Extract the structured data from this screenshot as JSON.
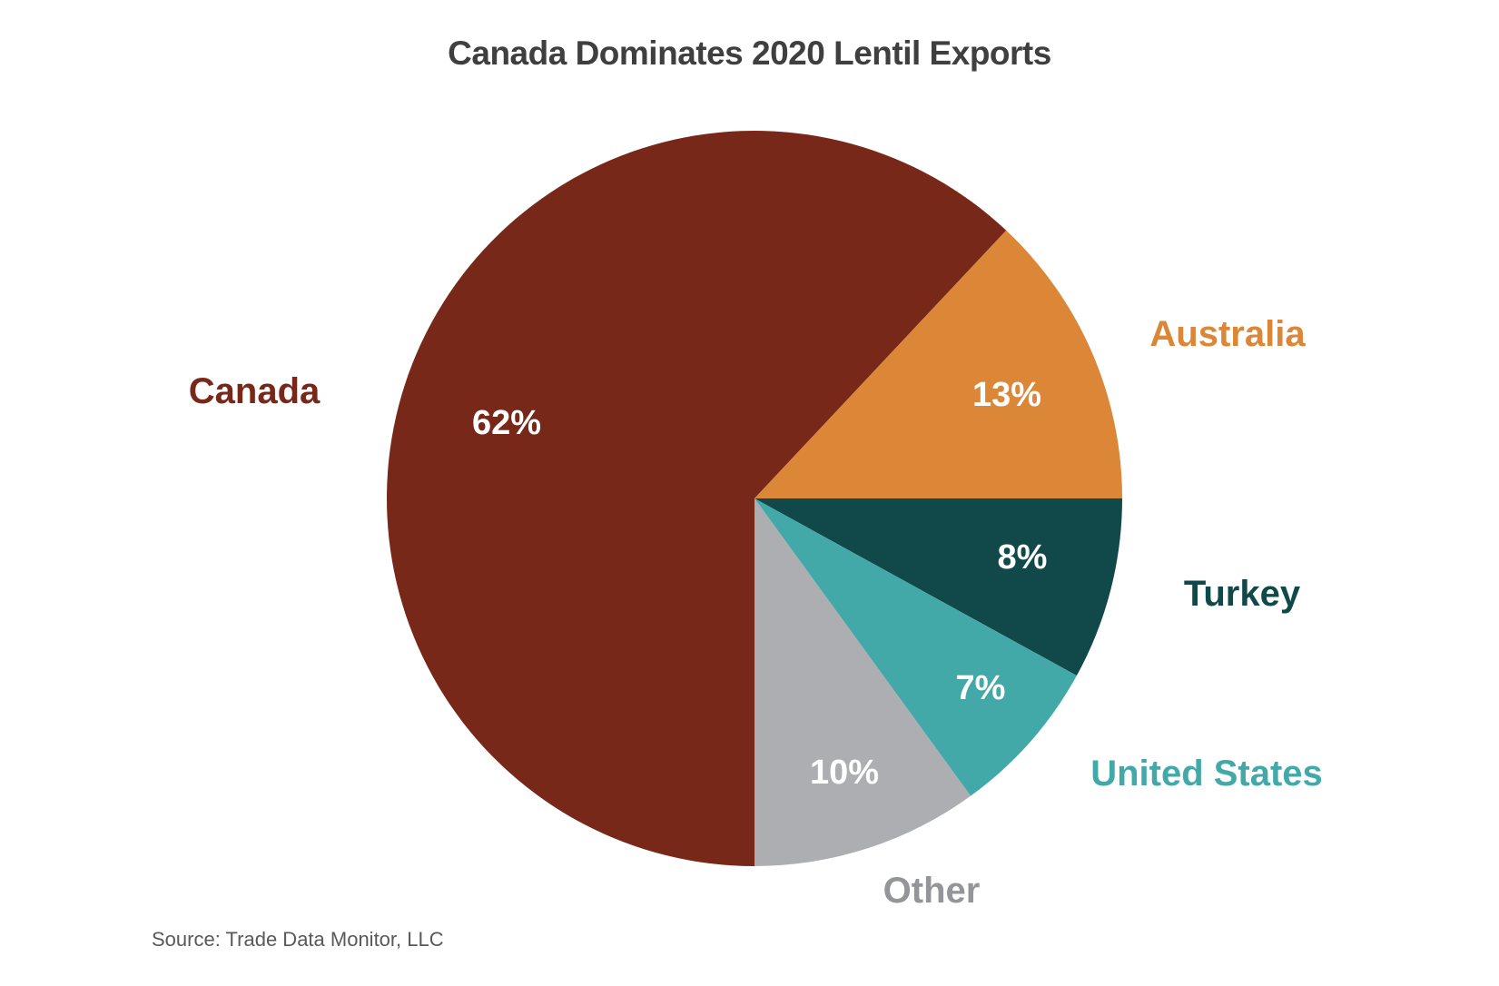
{
  "chart_data": {
    "type": "pie",
    "title": "Canada Dominates 2020 Lentil Exports",
    "source": "Source: Trade Data Monitor, LLC",
    "start_angle": "3 o'clock, clockwise",
    "slices": [
      {
        "name": "Turkey",
        "value": 8,
        "label": "8%",
        "color": "#11484A",
        "label_color": "#11484A"
      },
      {
        "name": "United States",
        "value": 7,
        "label": "7%",
        "color": "#42A9A8",
        "label_color": "#42A9A8"
      },
      {
        "name": "Other",
        "value": 10,
        "label": "10%",
        "color": "#ADAEB1",
        "label_color": "#939598"
      },
      {
        "name": "Canada",
        "value": 62,
        "label": "62%",
        "color": "#772818",
        "label_color": "#772818"
      },
      {
        "name": "Australia",
        "value": 13,
        "label": "13%",
        "color": "#DC8737",
        "label_color": "#DC8737"
      }
    ]
  }
}
